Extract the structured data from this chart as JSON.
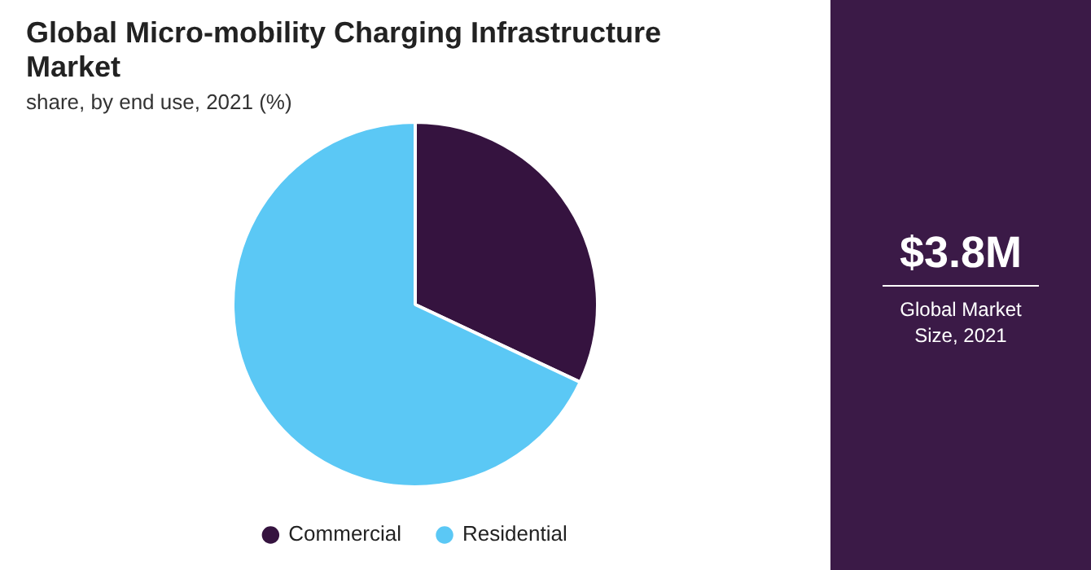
{
  "chart_data": {
    "type": "pie",
    "title": "Global Micro-mobility Charging Infrastructure Market",
    "subtitle": "share, by end use, 2021 (%)",
    "categories": [
      "Commercial",
      "Residential"
    ],
    "values": [
      32,
      68
    ],
    "colors": [
      "#35133f",
      "#5bc8f5"
    ],
    "legend": "bottom",
    "annotations": [
      "$3.8M",
      "Global Market Size, 2021"
    ]
  }
}
